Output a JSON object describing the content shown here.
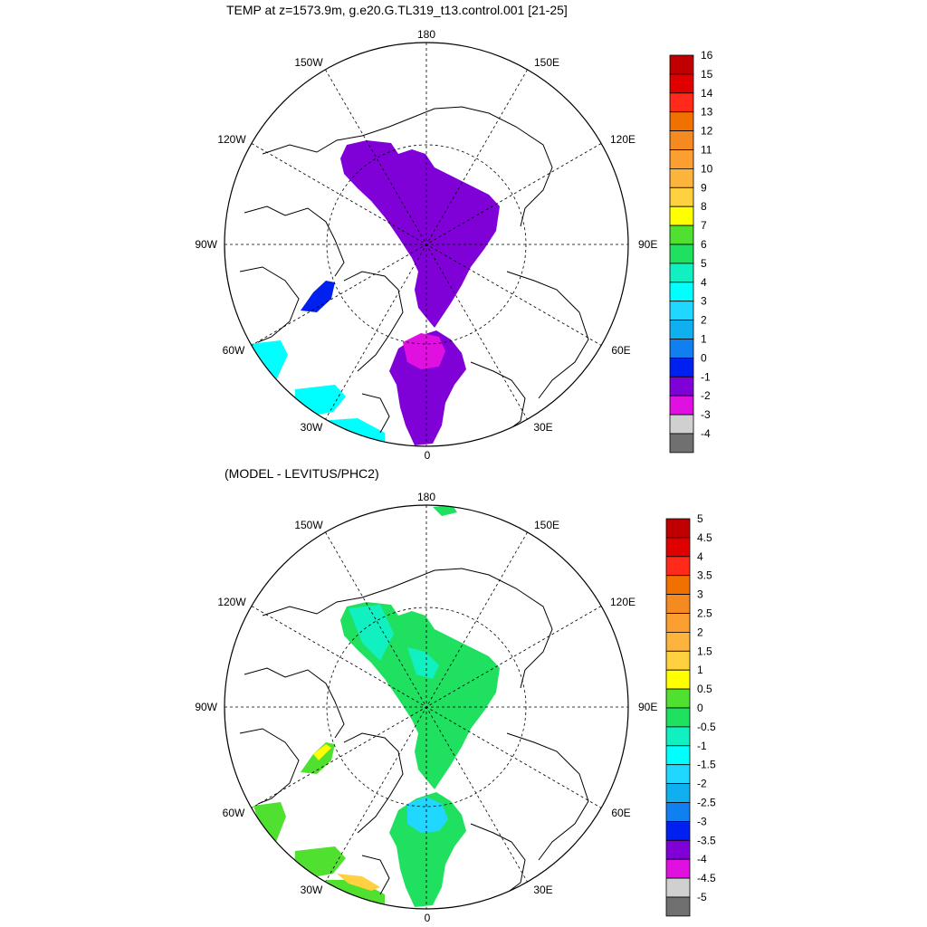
{
  "panel_top": {
    "title": "TEMP at z=1573.9m, g.e20.G.TL319_t13.control.001 [21-25]",
    "lon_labels": {
      "n": "180",
      "ne": "150E",
      "ene": "120E",
      "e": "90E",
      "ese": "60E",
      "se": "30E",
      "s": "0",
      "sw": "30W",
      "wsw": "60W",
      "w": "90W",
      "wnw": "120W",
      "nw": "150W"
    },
    "colorbar_labels": [
      "16",
      "15",
      "14",
      "13",
      "12",
      "11",
      "10",
      "9",
      "8",
      "7",
      "6",
      "5",
      "4",
      "3",
      "2",
      "1",
      "0",
      "-1",
      "-2",
      "-3",
      "-4"
    ],
    "colorbar_colors": [
      "#c00000",
      "#e00000",
      "#ff2a1a",
      "#f07000",
      "#f58a20",
      "#fa9f30",
      "#fcb43c",
      "#ffd040",
      "#ffff00",
      "#50e030",
      "#20e060",
      "#10f0c0",
      "#00ffff",
      "#20d8ff",
      "#10b0f0",
      "#1080f0",
      "#0020f0",
      "#8000d8",
      "#e010e0",
      "#d0d0d0",
      "#707070"
    ]
  },
  "panel_bottom": {
    "title": "(MODEL - LEVITUS/PHC2)",
    "lon_labels": {
      "n": "180",
      "ne": "150E",
      "ene": "120E",
      "e": "90E",
      "ese": "60E",
      "se": "30E",
      "s": "0",
      "sw": "30W",
      "wsw": "60W",
      "w": "90W",
      "wnw": "120W",
      "nw": "150W"
    },
    "colorbar_labels": [
      "5",
      "4.5",
      "4",
      "3.5",
      "3",
      "2.5",
      "2",
      "1.5",
      "1",
      "0.5",
      "0",
      "-0.5",
      "-1",
      "-1.5",
      "-2",
      "-2.5",
      "-3",
      "-3.5",
      "-4",
      "-4.5",
      "-5"
    ],
    "colorbar_colors": [
      "#c00000",
      "#e00000",
      "#ff2a1a",
      "#f07000",
      "#f58a20",
      "#fa9f30",
      "#fcb43c",
      "#ffd040",
      "#ffff00",
      "#50e030",
      "#20e060",
      "#10f0c0",
      "#00ffff",
      "#20d8ff",
      "#10b0f0",
      "#1080f0",
      "#0020f0",
      "#8000d8",
      "#e010e0",
      "#d0d0d0",
      "#707070"
    ]
  }
}
